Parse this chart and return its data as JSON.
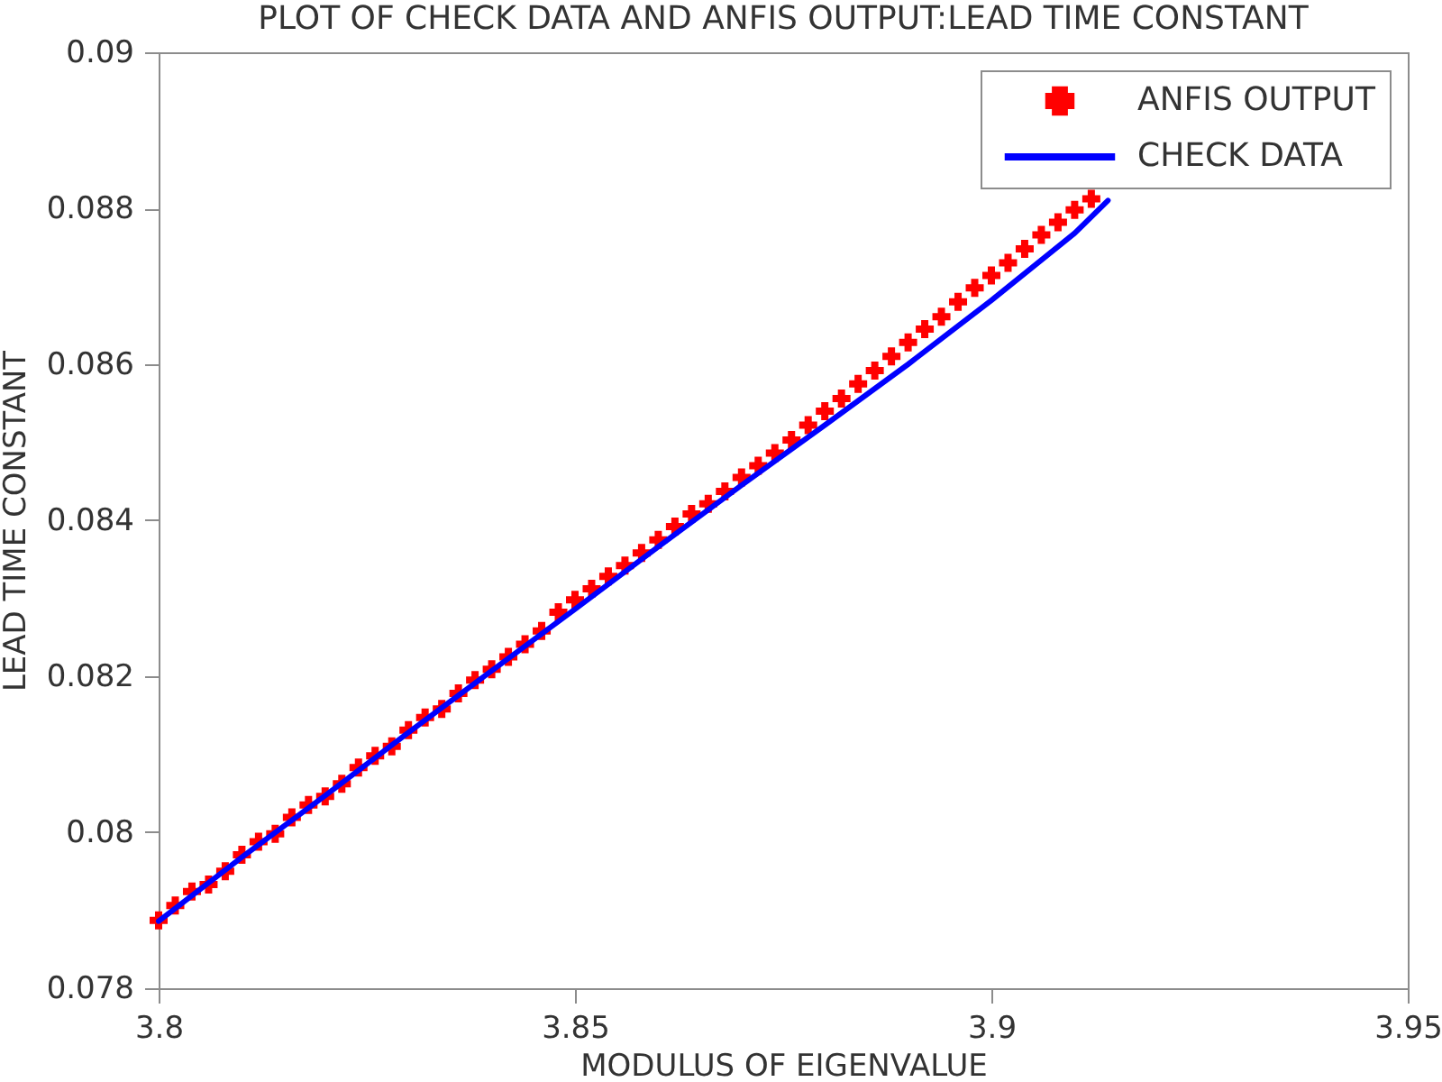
{
  "chart_data": {
    "type": "line",
    "title": "PLOT OF CHECK DATA AND ANFIS OUTPUT:LEAD TIME CONSTANT",
    "xlabel": "MODULUS OF EIGENVALUE",
    "ylabel": "LEAD TIME CONSTANT",
    "xlim": [
      3.8,
      3.95
    ],
    "xticks": [
      3.8,
      3.85,
      3.9,
      3.95
    ],
    "ylim": [
      0.078,
      0.09
    ],
    "yticks": [
      0.078,
      0.08,
      0.082,
      0.084,
      0.086,
      0.088,
      0.09
    ],
    "grid": false,
    "legend": "top right",
    "series": [
      {
        "name": "ANFIS OUTPUT",
        "type": "scatter",
        "marker": "cross",
        "color": "#ff0000",
        "x": [
          3.8,
          3.802,
          3.804,
          3.806,
          3.808,
          3.81,
          3.812,
          3.814,
          3.816,
          3.818,
          3.82,
          3.822,
          3.824,
          3.826,
          3.828,
          3.83,
          3.832,
          3.834,
          3.836,
          3.838,
          3.84,
          3.842,
          3.844,
          3.846,
          3.848,
          3.85,
          3.852,
          3.854,
          3.856,
          3.858,
          3.86,
          3.862,
          3.864,
          3.866,
          3.868,
          3.87,
          3.872,
          3.874,
          3.876,
          3.878,
          3.88,
          3.882,
          3.884,
          3.886,
          3.888,
          3.89,
          3.892,
          3.894,
          3.896,
          3.898,
          3.9,
          3.902,
          3.904,
          3.906,
          3.908,
          3.91,
          3.912
        ],
        "values": [
          0.07887,
          0.07906,
          0.07924,
          0.07933,
          0.0795,
          0.07971,
          0.07988,
          0.07998,
          0.08019,
          0.08035,
          0.08046,
          0.08062,
          0.08083,
          0.08098,
          0.0811,
          0.08131,
          0.08147,
          0.08158,
          0.08178,
          0.08195,
          0.08209,
          0.08225,
          0.08241,
          0.08258,
          0.08282,
          0.08298,
          0.08312,
          0.08328,
          0.08342,
          0.08358,
          0.08375,
          0.08392,
          0.08408,
          0.08421,
          0.08437,
          0.08455,
          0.0847,
          0.08486,
          0.08503,
          0.08522,
          0.0854,
          0.08556,
          0.08575,
          0.08592,
          0.0861,
          0.08628,
          0.08645,
          0.08661,
          0.0868,
          0.08698,
          0.08714,
          0.0873,
          0.08748,
          0.08766,
          0.08782,
          0.08798,
          0.08812
        ]
      },
      {
        "name": "CHECK DATA",
        "type": "line",
        "line_style": "solid",
        "color": "#0000ff",
        "x": [
          3.8,
          3.81,
          3.82,
          3.83,
          3.84,
          3.85,
          3.86,
          3.87,
          3.88,
          3.89,
          3.9,
          3.91,
          3.914
        ],
        "values": [
          0.07886,
          0.07968,
          0.08047,
          0.08128,
          0.08207,
          0.08286,
          0.08366,
          0.08445,
          0.08522,
          0.086,
          0.08682,
          0.08768,
          0.0881
        ]
      }
    ]
  }
}
